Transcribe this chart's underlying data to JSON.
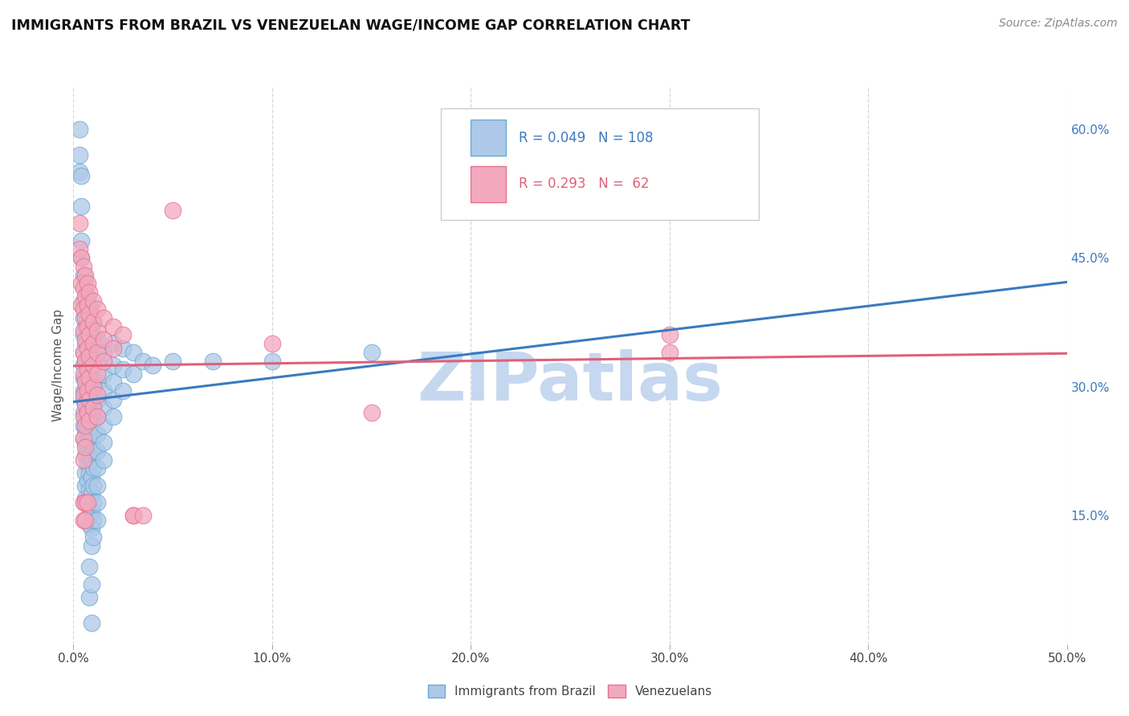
{
  "title": "IMMIGRANTS FROM BRAZIL VS VENEZUELAN WAGE/INCOME GAP CORRELATION CHART",
  "source": "Source: ZipAtlas.com",
  "ylabel": "Wage/Income Gap",
  "xlim": [
    0.0,
    0.5
  ],
  "ylim": [
    0.0,
    0.65
  ],
  "xticks": [
    0.0,
    0.1,
    0.2,
    0.3,
    0.4,
    0.5
  ],
  "yticks_right": [
    0.15,
    0.3,
    0.45,
    0.6
  ],
  "ytick_labels_right": [
    "15.0%",
    "30.0%",
    "45.0%",
    "60.0%"
  ],
  "xtick_labels": [
    "0.0%",
    "10.0%",
    "20.0%",
    "30.0%",
    "40.0%",
    "50.0%"
  ],
  "legend_R1": "0.049",
  "legend_N1": "108",
  "legend_R2": "0.293",
  "legend_N2": "62",
  "brazil_fill": "#adc8e8",
  "venezuela_fill": "#f2a8be",
  "brazil_edge": "#6aaad4",
  "venezuela_edge": "#e87090",
  "brazil_line_color": "#3a7abf",
  "venezuela_line_color": "#e0607a",
  "background_color": "#ffffff",
  "grid_color": "#d8d8d8",
  "watermark": "ZIPatlas",
  "watermark_color": "#c5d8ef",
  "brazil_scatter": [
    [
      0.003,
      0.6
    ],
    [
      0.003,
      0.57
    ],
    [
      0.003,
      0.55
    ],
    [
      0.004,
      0.545
    ],
    [
      0.004,
      0.51
    ],
    [
      0.004,
      0.47
    ],
    [
      0.004,
      0.45
    ],
    [
      0.005,
      0.43
    ],
    [
      0.005,
      0.4
    ],
    [
      0.005,
      0.38
    ],
    [
      0.005,
      0.36
    ],
    [
      0.005,
      0.34
    ],
    [
      0.005,
      0.325
    ],
    [
      0.005,
      0.31
    ],
    [
      0.005,
      0.295
    ],
    [
      0.005,
      0.285
    ],
    [
      0.005,
      0.27
    ],
    [
      0.005,
      0.255
    ],
    [
      0.005,
      0.24
    ],
    [
      0.006,
      0.42
    ],
    [
      0.006,
      0.39
    ],
    [
      0.006,
      0.37
    ],
    [
      0.006,
      0.35
    ],
    [
      0.006,
      0.33
    ],
    [
      0.006,
      0.31
    ],
    [
      0.006,
      0.295
    ],
    [
      0.006,
      0.28
    ],
    [
      0.006,
      0.265
    ],
    [
      0.006,
      0.25
    ],
    [
      0.006,
      0.235
    ],
    [
      0.006,
      0.22
    ],
    [
      0.006,
      0.2
    ],
    [
      0.006,
      0.185
    ],
    [
      0.006,
      0.17
    ],
    [
      0.007,
      0.405
    ],
    [
      0.007,
      0.38
    ],
    [
      0.007,
      0.355
    ],
    [
      0.007,
      0.33
    ],
    [
      0.007,
      0.31
    ],
    [
      0.007,
      0.29
    ],
    [
      0.007,
      0.27
    ],
    [
      0.007,
      0.25
    ],
    [
      0.007,
      0.23
    ],
    [
      0.007,
      0.21
    ],
    [
      0.007,
      0.19
    ],
    [
      0.008,
      0.395
    ],
    [
      0.008,
      0.37
    ],
    [
      0.008,
      0.345
    ],
    [
      0.008,
      0.32
    ],
    [
      0.008,
      0.3
    ],
    [
      0.008,
      0.28
    ],
    [
      0.008,
      0.26
    ],
    [
      0.008,
      0.24
    ],
    [
      0.008,
      0.22
    ],
    [
      0.008,
      0.2
    ],
    [
      0.008,
      0.18
    ],
    [
      0.008,
      0.16
    ],
    [
      0.008,
      0.14
    ],
    [
      0.008,
      0.09
    ],
    [
      0.008,
      0.055
    ],
    [
      0.009,
      0.385
    ],
    [
      0.009,
      0.365
    ],
    [
      0.009,
      0.34
    ],
    [
      0.009,
      0.315
    ],
    [
      0.009,
      0.295
    ],
    [
      0.009,
      0.275
    ],
    [
      0.009,
      0.255
    ],
    [
      0.009,
      0.235
    ],
    [
      0.009,
      0.215
    ],
    [
      0.009,
      0.195
    ],
    [
      0.009,
      0.175
    ],
    [
      0.009,
      0.155
    ],
    [
      0.009,
      0.135
    ],
    [
      0.009,
      0.115
    ],
    [
      0.009,
      0.07
    ],
    [
      0.009,
      0.025
    ],
    [
      0.01,
      0.375
    ],
    [
      0.01,
      0.355
    ],
    [
      0.01,
      0.33
    ],
    [
      0.01,
      0.305
    ],
    [
      0.01,
      0.285
    ],
    [
      0.01,
      0.265
    ],
    [
      0.01,
      0.245
    ],
    [
      0.01,
      0.225
    ],
    [
      0.01,
      0.205
    ],
    [
      0.01,
      0.185
    ],
    [
      0.01,
      0.165
    ],
    [
      0.01,
      0.145
    ],
    [
      0.01,
      0.125
    ],
    [
      0.012,
      0.355
    ],
    [
      0.012,
      0.33
    ],
    [
      0.012,
      0.305
    ],
    [
      0.012,
      0.285
    ],
    [
      0.012,
      0.265
    ],
    [
      0.012,
      0.245
    ],
    [
      0.012,
      0.225
    ],
    [
      0.012,
      0.205
    ],
    [
      0.012,
      0.185
    ],
    [
      0.012,
      0.165
    ],
    [
      0.012,
      0.145
    ],
    [
      0.015,
      0.34
    ],
    [
      0.015,
      0.315
    ],
    [
      0.015,
      0.295
    ],
    [
      0.015,
      0.275
    ],
    [
      0.015,
      0.255
    ],
    [
      0.015,
      0.235
    ],
    [
      0.015,
      0.215
    ],
    [
      0.02,
      0.35
    ],
    [
      0.02,
      0.325
    ],
    [
      0.02,
      0.305
    ],
    [
      0.02,
      0.285
    ],
    [
      0.02,
      0.265
    ],
    [
      0.025,
      0.345
    ],
    [
      0.025,
      0.32
    ],
    [
      0.025,
      0.295
    ],
    [
      0.03,
      0.34
    ],
    [
      0.03,
      0.315
    ],
    [
      0.035,
      0.33
    ],
    [
      0.04,
      0.325
    ],
    [
      0.05,
      0.33
    ],
    [
      0.07,
      0.33
    ],
    [
      0.1,
      0.33
    ],
    [
      0.15,
      0.34
    ]
  ],
  "venezuela_scatter": [
    [
      0.003,
      0.49
    ],
    [
      0.003,
      0.46
    ],
    [
      0.004,
      0.45
    ],
    [
      0.004,
      0.42
    ],
    [
      0.004,
      0.395
    ],
    [
      0.005,
      0.44
    ],
    [
      0.005,
      0.415
    ],
    [
      0.005,
      0.39
    ],
    [
      0.005,
      0.365
    ],
    [
      0.005,
      0.34
    ],
    [
      0.005,
      0.315
    ],
    [
      0.005,
      0.29
    ],
    [
      0.005,
      0.265
    ],
    [
      0.005,
      0.24
    ],
    [
      0.005,
      0.215
    ],
    [
      0.005,
      0.165
    ],
    [
      0.005,
      0.145
    ],
    [
      0.006,
      0.43
    ],
    [
      0.006,
      0.405
    ],
    [
      0.006,
      0.38
    ],
    [
      0.006,
      0.355
    ],
    [
      0.006,
      0.33
    ],
    [
      0.006,
      0.305
    ],
    [
      0.006,
      0.28
    ],
    [
      0.006,
      0.255
    ],
    [
      0.006,
      0.23
    ],
    [
      0.006,
      0.165
    ],
    [
      0.006,
      0.145
    ],
    [
      0.007,
      0.42
    ],
    [
      0.007,
      0.395
    ],
    [
      0.007,
      0.37
    ],
    [
      0.007,
      0.345
    ],
    [
      0.007,
      0.32
    ],
    [
      0.007,
      0.295
    ],
    [
      0.007,
      0.27
    ],
    [
      0.007,
      0.165
    ],
    [
      0.008,
      0.41
    ],
    [
      0.008,
      0.385
    ],
    [
      0.008,
      0.36
    ],
    [
      0.008,
      0.335
    ],
    [
      0.008,
      0.31
    ],
    [
      0.008,
      0.285
    ],
    [
      0.008,
      0.26
    ],
    [
      0.01,
      0.4
    ],
    [
      0.01,
      0.375
    ],
    [
      0.01,
      0.35
    ],
    [
      0.01,
      0.325
    ],
    [
      0.01,
      0.3
    ],
    [
      0.01,
      0.275
    ],
    [
      0.012,
      0.39
    ],
    [
      0.012,
      0.365
    ],
    [
      0.012,
      0.34
    ],
    [
      0.012,
      0.315
    ],
    [
      0.012,
      0.29
    ],
    [
      0.012,
      0.265
    ],
    [
      0.015,
      0.38
    ],
    [
      0.015,
      0.355
    ],
    [
      0.015,
      0.33
    ],
    [
      0.02,
      0.37
    ],
    [
      0.02,
      0.345
    ],
    [
      0.025,
      0.36
    ],
    [
      0.03,
      0.15
    ],
    [
      0.03,
      0.15
    ],
    [
      0.035,
      0.15
    ],
    [
      0.05,
      0.505
    ],
    [
      0.1,
      0.35
    ],
    [
      0.15,
      0.27
    ],
    [
      0.3,
      0.36
    ],
    [
      0.3,
      0.34
    ]
  ]
}
